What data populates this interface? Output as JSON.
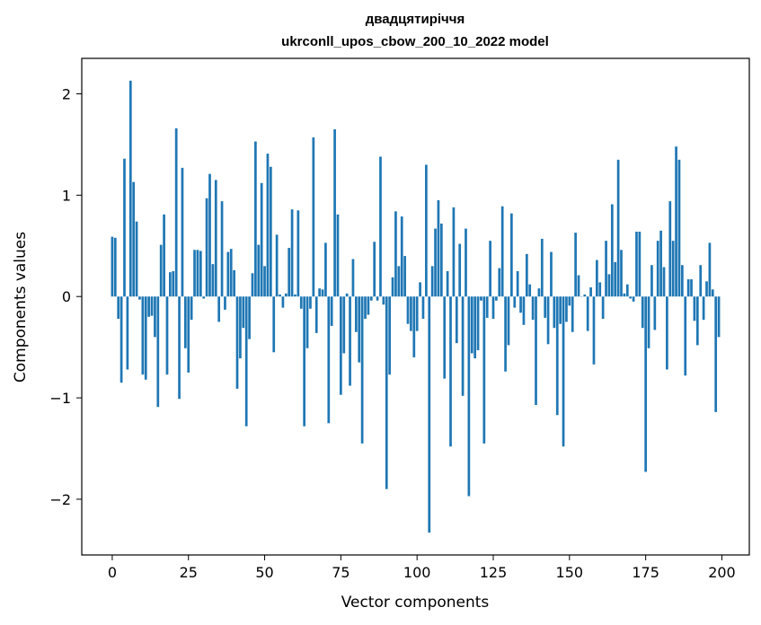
{
  "chart_data": {
    "type": "bar",
    "title": "двадцятиріччя",
    "subtitle": "ukrconll_upos_cbow_200_10_2022 model",
    "xlabel": "Vector components",
    "ylabel": "Components values",
    "xlim": [
      -10,
      209
    ],
    "ylim": [
      -2.55,
      2.35
    ],
    "xticks": [
      0,
      25,
      50,
      75,
      100,
      125,
      150,
      175,
      200
    ],
    "yticks": [
      -2,
      -1,
      0,
      1,
      2
    ],
    "ytick_labels": [
      "−2",
      "−1",
      "0",
      "1",
      "2"
    ],
    "grid": false,
    "bar_color": "#1f77b4",
    "x": [
      0,
      1,
      2,
      3,
      4,
      5,
      6,
      7,
      8,
      9,
      10,
      11,
      12,
      13,
      14,
      15,
      16,
      17,
      18,
      19,
      20,
      21,
      22,
      23,
      24,
      25,
      26,
      27,
      28,
      29,
      30,
      31,
      32,
      33,
      34,
      35,
      36,
      37,
      38,
      39,
      40,
      41,
      42,
      43,
      44,
      45,
      46,
      47,
      48,
      49,
      50,
      51,
      52,
      53,
      54,
      55,
      56,
      57,
      58,
      59,
      60,
      61,
      62,
      63,
      64,
      65,
      66,
      67,
      68,
      69,
      70,
      71,
      72,
      73,
      74,
      75,
      76,
      77,
      78,
      79,
      80,
      81,
      82,
      83,
      84,
      85,
      86,
      87,
      88,
      89,
      90,
      91,
      92,
      93,
      94,
      95,
      96,
      97,
      98,
      99,
      100,
      101,
      102,
      103,
      104,
      105,
      106,
      107,
      108,
      109,
      110,
      111,
      112,
      113,
      114,
      115,
      116,
      117,
      118,
      119,
      120,
      121,
      122,
      123,
      124,
      125,
      126,
      127,
      128,
      129,
      130,
      131,
      132,
      133,
      134,
      135,
      136,
      137,
      138,
      139,
      140,
      141,
      142,
      143,
      144,
      145,
      146,
      147,
      148,
      149,
      150,
      151,
      152,
      153,
      154,
      155,
      156,
      157,
      158,
      159,
      160,
      161,
      162,
      163,
      164,
      165,
      166,
      167,
      168,
      169,
      170,
      171,
      172,
      173,
      174,
      175,
      176,
      177,
      178,
      179,
      180,
      181,
      182,
      183,
      184,
      185,
      186,
      187,
      188,
      189,
      190,
      191,
      192,
      193,
      194,
      195,
      196,
      197,
      198,
      199
    ],
    "values": [
      0.59,
      0.58,
      -0.22,
      -0.85,
      1.36,
      -0.72,
      2.13,
      1.13,
      0.74,
      -0.03,
      -0.77,
      -0.82,
      -0.2,
      -0.19,
      -0.4,
      -1.09,
      0.51,
      0.81,
      -0.77,
      0.24,
      0.25,
      1.66,
      -1.01,
      1.27,
      -0.51,
      -0.75,
      -0.23,
      0.46,
      0.46,
      0.45,
      -0.02,
      0.97,
      1.21,
      0.32,
      1.15,
      -0.25,
      0.94,
      -0.13,
      0.44,
      0.47,
      0.26,
      -0.91,
      -0.61,
      -0.31,
      -1.28,
      -0.42,
      0.23,
      1.53,
      0.51,
      1.12,
      0.3,
      1.41,
      1.28,
      -0.55,
      0.61,
      0.02,
      -0.11,
      0.03,
      0.48,
      0.86,
      0.02,
      0.85,
      -0.12,
      -1.28,
      -0.51,
      -0.12,
      1.57,
      -0.36,
      0.08,
      0.07,
      0.53,
      -1.25,
      -0.29,
      1.65,
      0.81,
      -0.97,
      -0.56,
      0.03,
      -0.88,
      0.37,
      -0.35,
      -0.65,
      -1.45,
      -0.22,
      -0.18,
      -0.04,
      0.54,
      -0.04,
      1.38,
      -0.08,
      -1.9,
      -0.77,
      0.19,
      0.84,
      0.3,
      0.79,
      0.4,
      -0.27,
      -0.34,
      -0.6,
      -0.34,
      0.14,
      -0.22,
      1.3,
      -2.33,
      0.3,
      0.67,
      0.95,
      0.72,
      -0.81,
      0.25,
      -1.48,
      0.88,
      -0.46,
      0.52,
      -0.98,
      0.67,
      -1.97,
      -0.56,
      -0.61,
      -0.53,
      -0.04,
      -1.45,
      -0.21,
      0.55,
      -0.22,
      -0.04,
      0.28,
      0.89,
      -0.74,
      -0.48,
      0.82,
      -0.11,
      0.25,
      -0.16,
      -0.28,
      0.42,
      0.12,
      -0.23,
      -1.07,
      0.08,
      0.57,
      -0.21,
      -0.47,
      0.44,
      -0.31,
      -1.17,
      -0.27,
      -1.48,
      -0.25,
      -0.09,
      -0.35,
      0.63,
      0.21,
      0.0,
      0.02,
      -0.34,
      0.09,
      -0.67,
      0.36,
      0.14,
      -0.22,
      0.55,
      0.22,
      0.91,
      0.34,
      1.35,
      0.46,
      0.03,
      0.12,
      -0.02,
      -0.05,
      0.64,
      0.64,
      -0.31,
      -1.73,
      -0.51,
      0.31,
      -0.33,
      0.55,
      0.65,
      0.29,
      -0.72,
      0.94,
      0.55,
      1.48,
      1.35,
      0.31,
      -0.78,
      0.17,
      0.17,
      -0.24,
      -0.48,
      0.31,
      -0.23,
      0.15,
      0.53,
      0.07,
      -1.14,
      -0.4
    ]
  }
}
